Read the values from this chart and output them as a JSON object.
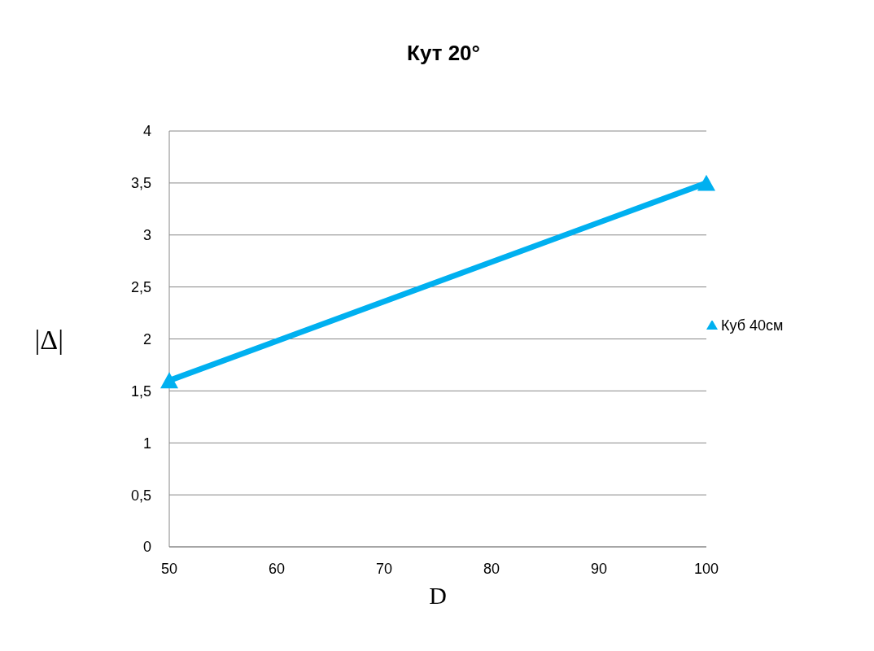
{
  "chart_data": {
    "type": "line",
    "title": "Кут 20°",
    "xlabel": "D",
    "ylabel": "|Δ|",
    "x": [
      50,
      100
    ],
    "series": [
      {
        "name": "Куб 40см",
        "color": "#00b0f0",
        "values": [
          1.6,
          3.5
        ]
      }
    ],
    "xlim": [
      50,
      100
    ],
    "xticks": [
      50,
      60,
      70,
      80,
      90,
      100
    ],
    "ylim": [
      0,
      4
    ],
    "yticks": [
      0,
      {
        "value": 0.5,
        "label": "0,5"
      },
      1,
      {
        "value": 1.5,
        "label": "1,5"
      },
      2,
      {
        "value": 2.5,
        "label": "2,5"
      },
      3,
      {
        "value": 3.5,
        "label": "3,5"
      },
      4
    ],
    "grid": "y",
    "legend": "right",
    "marker": "triangle",
    "line_style": "solid"
  }
}
